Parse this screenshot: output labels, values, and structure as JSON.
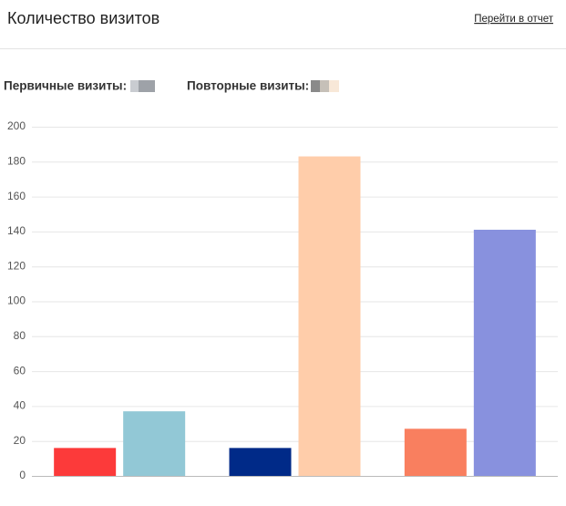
{
  "header": {
    "title": "Количество визитов",
    "link": "Перейти в отчет"
  },
  "summary": {
    "primary_label": "Первичные визиты:",
    "repeat_label": "Повторные визиты:"
  },
  "chart_data": {
    "type": "bar",
    "categories": [
      null,
      null,
      null
    ],
    "series": [
      {
        "colors": [
          "#fc3a3a",
          "#002a88",
          "#f97f5f"
        ],
        "values": [
          16,
          16,
          27
        ]
      },
      {
        "colors": [
          "#92c8d6",
          "#ffcdaa",
          "#8891de"
        ],
        "values": [
          37,
          183,
          141
        ]
      }
    ],
    "ylim": [
      0,
      200
    ],
    "yticks": [
      0,
      20,
      40,
      60,
      80,
      100,
      120,
      140,
      160,
      180,
      200
    ],
    "grid": true
  }
}
